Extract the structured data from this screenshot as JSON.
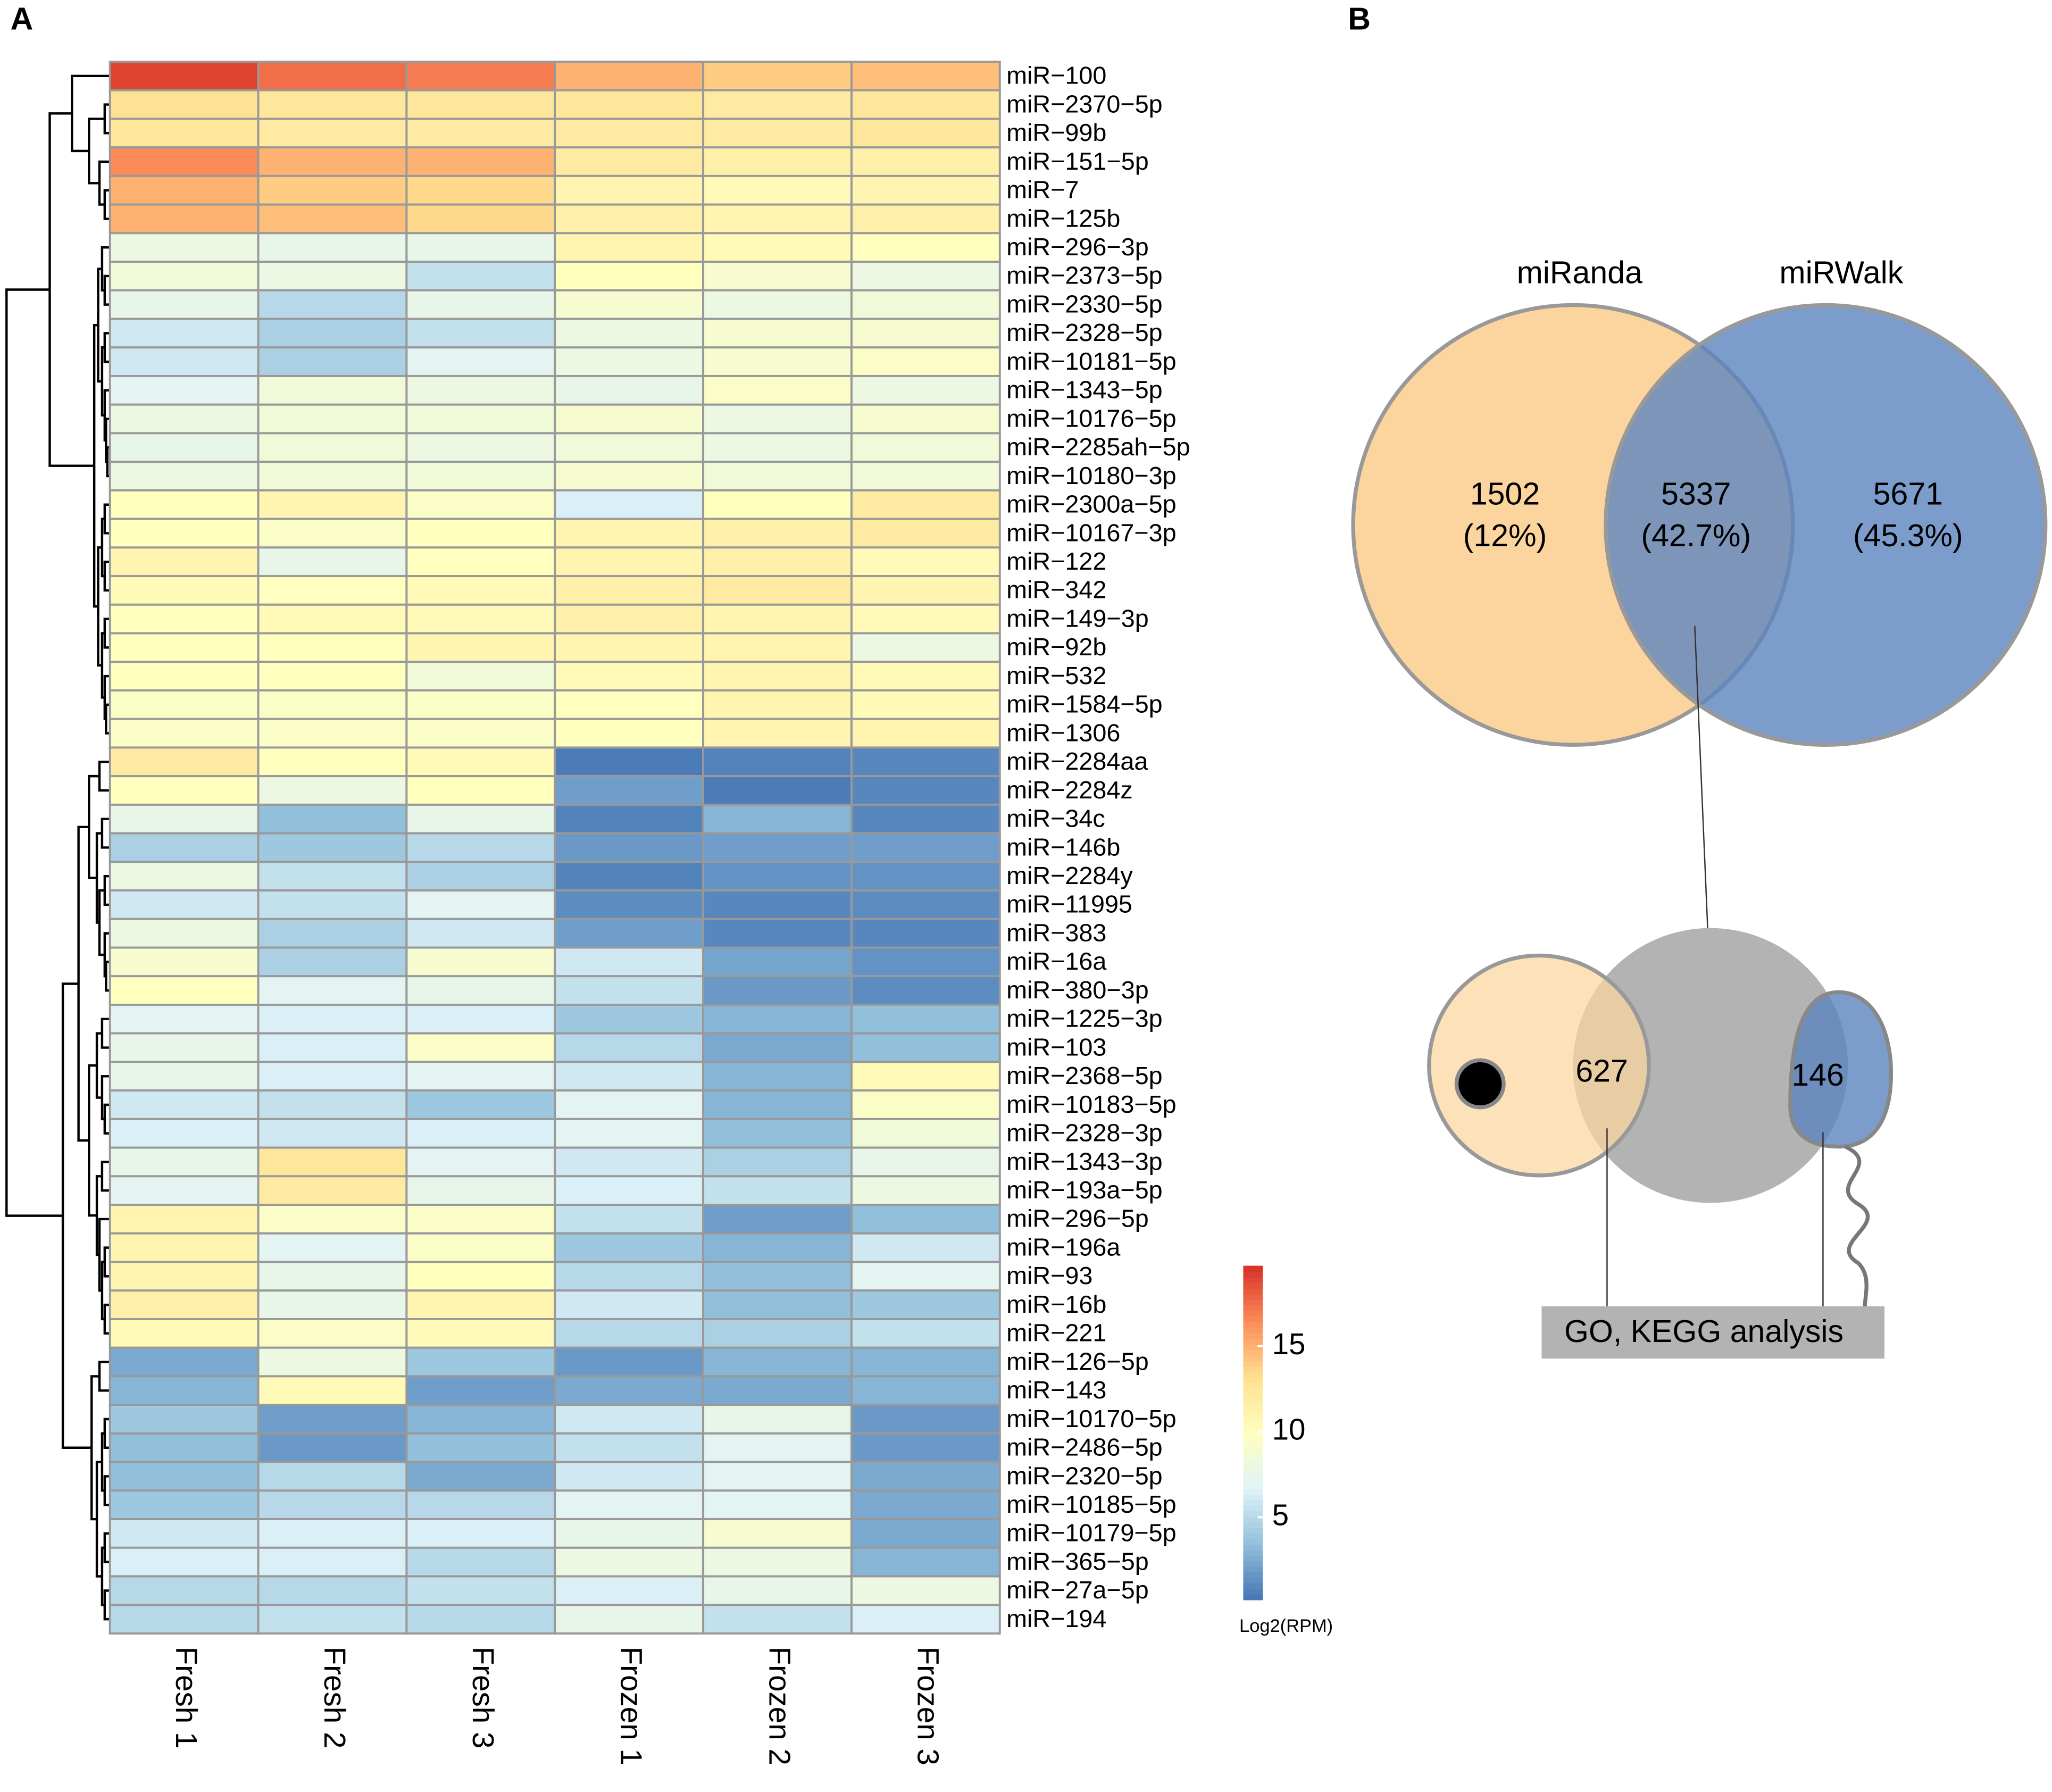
{
  "chart_data": [
    {
      "type": "heatmap",
      "panel": "A",
      "columns": [
        "Fresh 1",
        "Fresh 2",
        "Fresh 3",
        "Frozen 1",
        "Frozen 2",
        "Frozen 3"
      ],
      "rows": [
        "miR−100",
        "miR−2370−5p",
        "miR−99b",
        "miR−151−5p",
        "miR−7",
        "miR−125b",
        "miR−296−3p",
        "miR−2373−5p",
        "miR−2330−5p",
        "miR−2328−5p",
        "miR−10181−5p",
        "miR−1343−5p",
        "miR−10176−5p",
        "miR−2285ah−5p",
        "miR−10180−3p",
        "miR−2300a−5p",
        "miR−10167−3p",
        "miR−122",
        "miR−342",
        "miR−149−3p",
        "miR−92b",
        "miR−532",
        "miR−1584−5p",
        "miR−1306",
        "miR−2284aa",
        "miR−2284z",
        "miR−34c",
        "miR−146b",
        "miR−2284y",
        "miR−11995",
        "miR−383",
        "miR−16a",
        "miR−380−3p",
        "miR−1225−3p",
        "miR−103",
        "miR−2368−5p",
        "miR−10183−5p",
        "miR−2328−3p",
        "miR−1343−3p",
        "miR−193a−5p",
        "miR−296−5p",
        "miR−196a",
        "miR−93",
        "miR−16b",
        "miR−221",
        "miR−126−5p",
        "miR−143",
        "miR−10170−5p",
        "miR−2486−5p",
        "miR−2320−5p",
        "miR−10185−5p",
        "miR−10179−5p",
        "miR−365−5p",
        "miR−27a−5p",
        "miR−194"
      ],
      "values": [
        [
          19,
          17.5,
          17,
          15,
          14,
          14.5
        ],
        [
          13,
          12.5,
          12.5,
          12.5,
          12,
          12.5
        ],
        [
          12.5,
          12,
          12,
          12,
          12,
          12.5
        ],
        [
          16.5,
          15,
          15,
          12,
          11.5,
          11.5
        ],
        [
          15,
          14,
          13.5,
          11,
          10.5,
          11
        ],
        [
          15,
          14.5,
          13.5,
          11.5,
          11,
          11.5
        ],
        [
          8,
          7.5,
          7.5,
          11,
          10.5,
          10
        ],
        [
          8.5,
          8,
          5.5,
          10,
          9,
          8
        ],
        [
          7.5,
          5,
          7.5,
          9,
          8,
          8.5
        ],
        [
          6,
          4.5,
          5.5,
          8,
          9,
          9
        ],
        [
          6,
          4.5,
          7,
          8,
          9,
          9.5
        ],
        [
          7,
          8.5,
          8,
          7.5,
          9.5,
          8
        ],
        [
          8,
          8.5,
          8.5,
          9,
          8,
          9
        ],
        [
          7.5,
          8.5,
          8,
          8.5,
          8,
          8.5
        ],
        [
          8,
          8.5,
          8.5,
          9,
          8.5,
          8.5
        ],
        [
          10,
          11,
          9.5,
          6.5,
          10,
          12
        ],
        [
          10,
          9.5,
          10,
          11,
          11.5,
          12
        ],
        [
          11,
          7.5,
          10,
          11,
          11.5,
          10.5
        ],
        [
          10.5,
          10,
          10.5,
          11.5,
          12,
          11
        ],
        [
          10,
          10.5,
          10.5,
          11.5,
          11,
          10.5
        ],
        [
          10,
          10,
          11,
          11,
          11,
          8
        ],
        [
          10,
          10,
          8.5,
          10.5,
          11,
          10.5
        ],
        [
          9.5,
          9.5,
          9.5,
          10,
          11,
          10.5
        ],
        [
          9.5,
          9.5,
          9.5,
          10,
          11,
          11
        ],
        [
          12,
          10,
          10.5,
          0.5,
          0.8,
          1
        ],
        [
          10,
          8,
          10,
          2,
          0.5,
          1
        ],
        [
          7.5,
          3.5,
          7.5,
          0.8,
          3,
          1
        ],
        [
          4.5,
          4,
          5,
          1.8,
          2,
          2
        ],
        [
          8,
          5.5,
          4.5,
          0.8,
          1.5,
          1.5
        ],
        [
          6,
          5.5,
          7,
          1.2,
          1,
          1.2
        ],
        [
          8,
          4.5,
          6,
          2,
          1,
          1
        ],
        [
          9,
          4.5,
          9,
          6,
          2.3,
          1.5
        ],
        [
          10,
          7,
          7.5,
          5.5,
          1.8,
          1.2
        ],
        [
          7,
          6.5,
          6.5,
          4,
          3,
          3.5
        ],
        [
          7.5,
          6.5,
          9.5,
          5,
          2.5,
          3.5
        ],
        [
          7.5,
          6.5,
          7,
          6,
          3,
          10.5
        ],
        [
          6,
          5.5,
          4,
          7,
          3,
          9.5
        ],
        [
          6.5,
          6,
          6.5,
          7,
          3.5,
          8.5
        ],
        [
          7.5,
          12.5,
          7,
          6,
          4.5,
          7.5
        ],
        [
          7,
          12,
          7.5,
          6.5,
          5.5,
          8
        ],
        [
          11,
          9.5,
          9.5,
          5.5,
          2,
          3.5
        ],
        [
          11,
          7,
          9.5,
          4,
          3,
          6
        ],
        [
          11,
          7.5,
          10,
          5,
          3.5,
          7
        ],
        [
          11.5,
          7.5,
          11,
          6,
          3.5,
          4
        ],
        [
          10.5,
          9.5,
          10.5,
          5,
          4.5,
          5.5
        ],
        [
          2.5,
          8,
          4,
          1.8,
          3,
          3
        ],
        [
          3,
          10.5,
          2,
          2.5,
          2.5,
          3
        ],
        [
          4,
          2,
          3,
          6,
          7.5,
          1.8
        ],
        [
          3.5,
          1.8,
          3.5,
          5.5,
          7,
          1.8
        ],
        [
          3.5,
          5,
          2.5,
          6,
          7,
          2.5
        ],
        [
          4,
          5,
          5,
          7,
          7,
          2.5
        ],
        [
          6,
          6.5,
          6.5,
          7.5,
          9,
          2.5
        ],
        [
          6.5,
          6.5,
          5,
          8,
          8,
          3
        ],
        [
          5,
          5,
          5.5,
          6.5,
          7.5,
          8
        ],
        [
          5,
          5.5,
          5,
          7.5,
          5.5,
          6.5
        ]
      ],
      "colors": [
        "#4575b4",
        "#91bfdb",
        "#e0f3f8",
        "#ffffbf",
        "#fee090",
        "#fc8d59",
        "#d73027"
      ],
      "colorbar_lim": [
        0.2,
        19.7
      ],
      "colorbar_ticks": [
        5,
        10,
        15
      ],
      "colorbar_label": "Log2(RPM)"
    },
    {
      "type": "venn",
      "panel": "B",
      "sets": [
        {
          "name": "miRanda",
          "color": "#fcd59e"
        },
        {
          "name": "miRWalk",
          "color": "#5b84bf"
        }
      ],
      "values": [
        1502,
        5337,
        5671
      ],
      "percents": [
        12,
        42.7,
        45.3
      ],
      "percent_labels": [
        "(12%)",
        "(42.7%)",
        "(45.3%)"
      ],
      "sub_values": [
        627,
        146
      ],
      "analysis_label": "GO, KEGG analysis"
    }
  ]
}
